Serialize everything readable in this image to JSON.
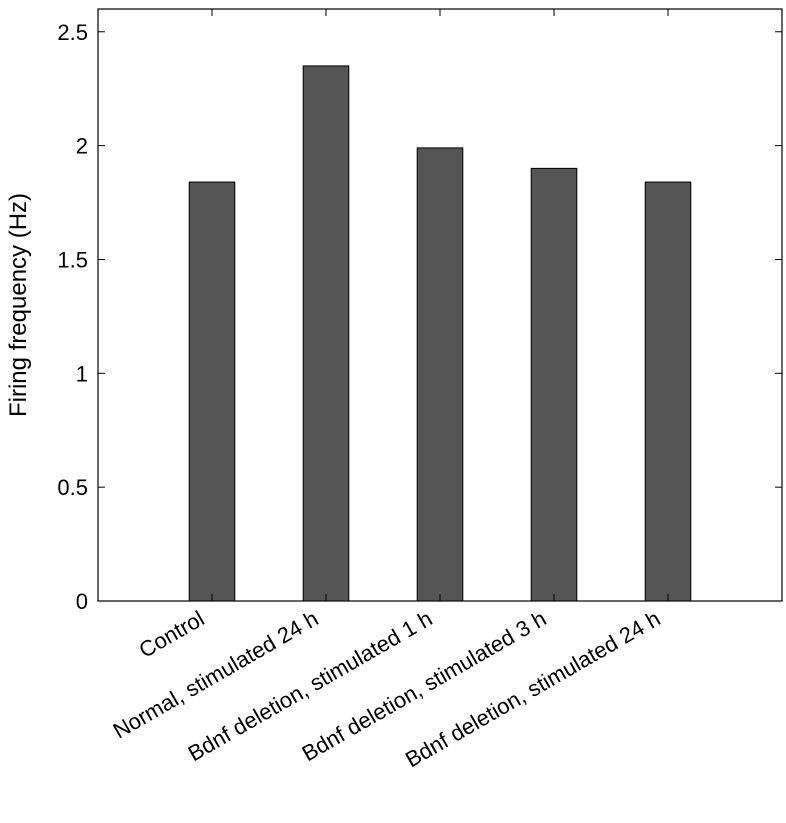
{
  "chart_data": {
    "type": "bar",
    "title": "",
    "xlabel": "",
    "ylabel": "Firing frequency (Hz)",
    "categories": [
      "Control",
      "Normal, stimulated 24 h",
      "Bdnf deletion, stimulated 1 h",
      "Bdnf deletion, stimulated 3 h",
      "Bdnf deletion, stimulated 24 h"
    ],
    "values": [
      1.84,
      2.35,
      1.99,
      1.9,
      1.84
    ],
    "ylim": [
      0,
      2.6
    ],
    "yticks": [
      0,
      0.5,
      1,
      1.5,
      2,
      2.5
    ],
    "ytick_labels": [
      "0",
      "0.5",
      "1",
      "1.5",
      "2",
      "2.5"
    ],
    "grid": false,
    "bar_color": "#555555",
    "bar_edge_color": "#000000"
  }
}
